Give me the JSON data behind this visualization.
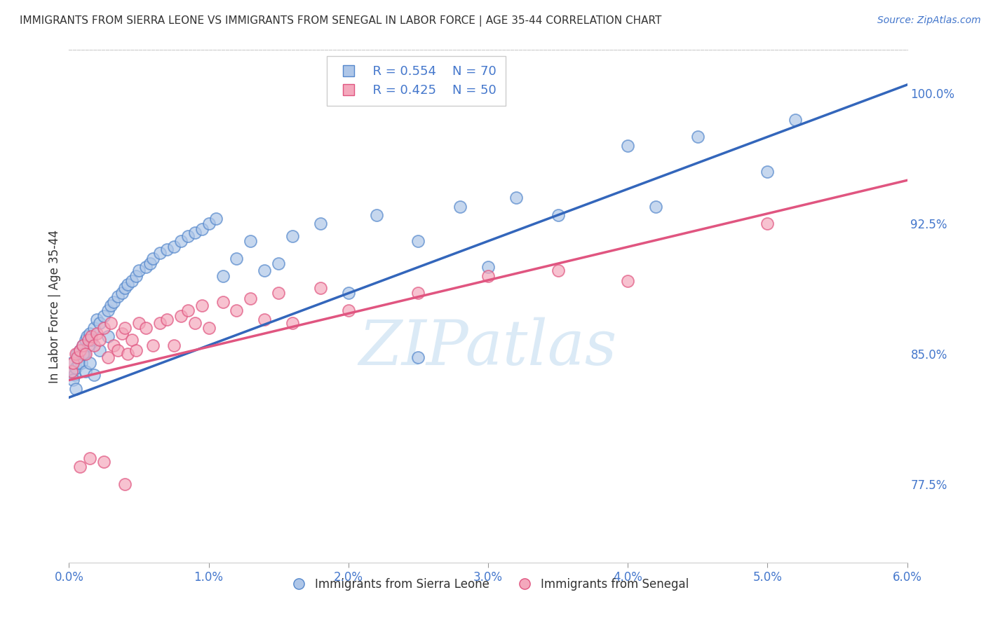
{
  "title": "IMMIGRANTS FROM SIERRA LEONE VS IMMIGRANTS FROM SENEGAL IN LABOR FORCE | AGE 35-44 CORRELATION CHART",
  "source": "Source: ZipAtlas.com",
  "ylabel": "In Labor Force | Age 35-44",
  "x_tick_labels": [
    "0.0%",
    "1.0%",
    "2.0%",
    "3.0%",
    "4.0%",
    "5.0%",
    "6.0%"
  ],
  "x_ticks": [
    0.0,
    1.0,
    2.0,
    3.0,
    4.0,
    5.0,
    6.0
  ],
  "y_tick_labels": [
    "77.5%",
    "85.0%",
    "92.5%",
    "100.0%"
  ],
  "y_ticks": [
    77.5,
    85.0,
    92.5,
    100.0
  ],
  "xlim": [
    0.0,
    6.0
  ],
  "ylim": [
    73.0,
    102.5
  ],
  "legend_blue_r": "R = 0.554",
  "legend_blue_n": "N = 70",
  "legend_pink_r": "R = 0.425",
  "legend_pink_n": "N = 50",
  "legend_label_blue": "Immigrants from Sierra Leone",
  "legend_label_pink": "Immigrants from Senegal",
  "blue_color": "#AEC6E8",
  "pink_color": "#F4A8BC",
  "blue_edge_color": "#5588CC",
  "pink_edge_color": "#E05580",
  "blue_line_color": "#3366BB",
  "pink_line_color": "#E05580",
  "grid_color": "#CCCCCC",
  "title_color": "#333333",
  "axis_label_color": "#4477CC",
  "watermark": "ZIPatlas",
  "blue_trend_x": [
    0.0,
    6.0
  ],
  "blue_trend_y": [
    82.5,
    100.5
  ],
  "pink_trend_x": [
    0.0,
    6.0
  ],
  "pink_trend_y": [
    83.5,
    95.0
  ],
  "blue_scatter_x": [
    0.02,
    0.03,
    0.04,
    0.05,
    0.06,
    0.07,
    0.08,
    0.09,
    0.1,
    0.11,
    0.12,
    0.13,
    0.14,
    0.15,
    0.16,
    0.18,
    0.2,
    0.22,
    0.25,
    0.28,
    0.3,
    0.32,
    0.35,
    0.38,
    0.4,
    0.42,
    0.45,
    0.48,
    0.5,
    0.55,
    0.58,
    0.6,
    0.65,
    0.7,
    0.75,
    0.8,
    0.85,
    0.9,
    0.95,
    1.0,
    1.05,
    1.1,
    1.2,
    1.3,
    1.4,
    1.5,
    1.6,
    1.8,
    2.0,
    2.2,
    2.5,
    2.8,
    3.0,
    3.2,
    3.5,
    4.0,
    4.2,
    4.5,
    5.0,
    5.2,
    0.03,
    0.05,
    0.07,
    0.1,
    0.12,
    0.15,
    0.18,
    0.22,
    0.28,
    2.5
  ],
  "blue_scatter_y": [
    84.5,
    84.0,
    83.8,
    84.2,
    85.0,
    84.8,
    85.2,
    84.5,
    85.5,
    85.0,
    85.8,
    86.0,
    85.5,
    86.2,
    85.8,
    86.5,
    87.0,
    86.8,
    87.2,
    87.5,
    87.8,
    88.0,
    88.3,
    88.5,
    88.8,
    89.0,
    89.2,
    89.5,
    89.8,
    90.0,
    90.2,
    90.5,
    90.8,
    91.0,
    91.2,
    91.5,
    91.8,
    92.0,
    92.2,
    92.5,
    92.8,
    89.5,
    90.5,
    91.5,
    89.8,
    90.2,
    91.8,
    92.5,
    88.5,
    93.0,
    91.5,
    93.5,
    90.0,
    94.0,
    93.0,
    97.0,
    93.5,
    97.5,
    95.5,
    98.5,
    83.5,
    83.0,
    84.5,
    85.0,
    84.0,
    84.5,
    83.8,
    85.2,
    86.0,
    84.8
  ],
  "pink_scatter_x": [
    0.02,
    0.03,
    0.05,
    0.06,
    0.08,
    0.1,
    0.12,
    0.14,
    0.16,
    0.18,
    0.2,
    0.22,
    0.25,
    0.28,
    0.3,
    0.32,
    0.35,
    0.38,
    0.4,
    0.42,
    0.45,
    0.48,
    0.5,
    0.55,
    0.6,
    0.65,
    0.7,
    0.75,
    0.8,
    0.85,
    0.9,
    0.95,
    1.0,
    1.1,
    1.2,
    1.3,
    1.4,
    1.5,
    1.6,
    1.8,
    2.0,
    2.5,
    3.0,
    3.5,
    4.0,
    5.0,
    0.08,
    0.15,
    0.25,
    0.4
  ],
  "pink_scatter_y": [
    84.0,
    84.5,
    85.0,
    84.8,
    85.2,
    85.5,
    85.0,
    85.8,
    86.0,
    85.5,
    86.2,
    85.8,
    86.5,
    84.8,
    86.8,
    85.5,
    85.2,
    86.2,
    86.5,
    85.0,
    85.8,
    85.2,
    86.8,
    86.5,
    85.5,
    86.8,
    87.0,
    85.5,
    87.2,
    87.5,
    86.8,
    87.8,
    86.5,
    88.0,
    87.5,
    88.2,
    87.0,
    88.5,
    86.8,
    88.8,
    87.5,
    88.5,
    89.5,
    89.8,
    89.2,
    92.5,
    78.5,
    79.0,
    78.8,
    77.5
  ]
}
